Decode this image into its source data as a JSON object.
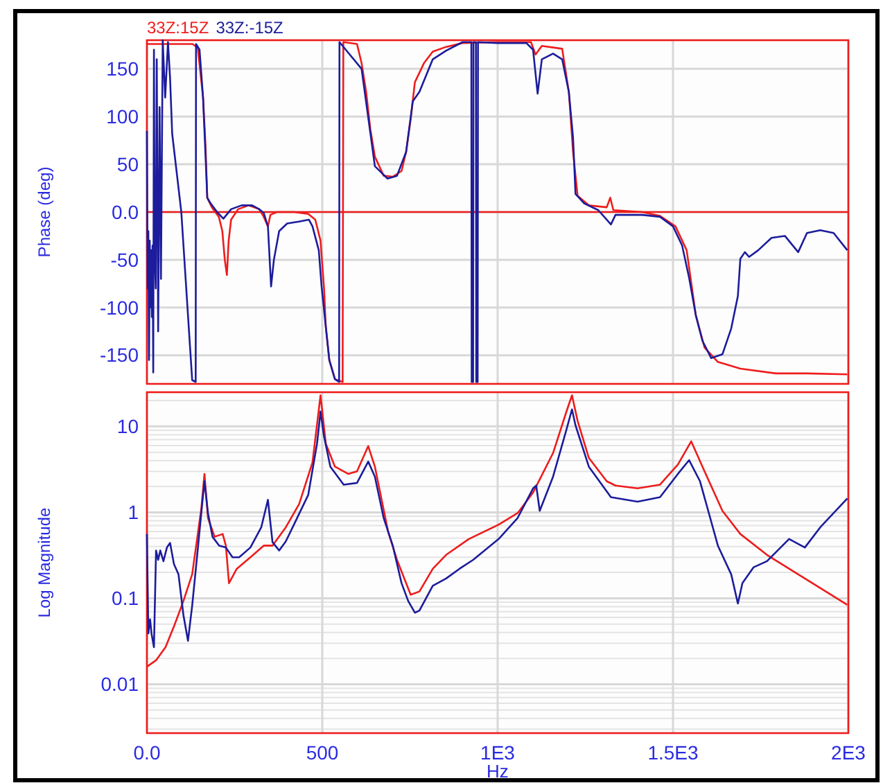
{
  "chart_data": [
    {
      "type": "line",
      "ylabel": "Phase (deg)",
      "xlim": [
        0,
        2000
      ],
      "xticks": [
        0,
        500,
        1000,
        1500,
        2000
      ],
      "ylim": [
        -180,
        180
      ],
      "yticks": [
        -150,
        -100,
        -50,
        {
          "value": 0,
          "label": "0.0"
        },
        50,
        100,
        150
      ],
      "grid": true,
      "legend": "top left",
      "tick_labels": "y",
      "ref_lines": [
        {
          "axis": "y",
          "value": 0,
          "color": "#ee1c1c"
        }
      ],
      "series": [
        {
          "name": "33Z:15Z",
          "color": "#ee1c1c",
          "x": [
            0,
            130,
            145,
            160,
            167,
            172,
            185,
            205,
            215,
            222,
            228,
            233,
            240,
            260,
            290,
            320,
            333,
            345,
            352,
            370,
            420,
            460,
            480,
            495,
            505,
            510,
            520,
            536,
            558,
            560,
            599,
            612,
            625,
            637,
            650,
            675,
            701,
            726,
            739,
            752,
            764,
            790,
            815,
            853,
            900,
            1000,
            1095,
            1108,
            1126,
            1184,
            1203,
            1215,
            1228,
            1260,
            1311,
            1321,
            1330,
            1412,
            1463,
            1507,
            1539,
            1565,
            1590,
            1628,
            1692,
            1793,
            1882,
            1997
          ],
          "values": [
            176,
            176,
            172,
            120,
            70,
            15,
            5,
            -5,
            -20,
            -50,
            -66,
            -30,
            -8,
            3,
            7,
            3,
            -5,
            -15,
            -3,
            0,
            0,
            -2,
            -8,
            -30,
            -80,
            -120,
            -155,
            -175,
            -178,
            178,
            176,
            156,
            126,
            87,
            58,
            38,
            37,
            43,
            63,
            97,
            136,
            156,
            168,
            173,
            177,
            178,
            178,
            165,
            174,
            171,
            126,
            63,
            17,
            7,
            5,
            15,
            2,
            0,
            -4,
            -15,
            -40,
            -108,
            -142,
            -157,
            -164,
            -169,
            -169,
            -170
          ]
        },
        {
          "name": "33Z:-15Z",
          "color": "#1c1c9c",
          "x": [
            0,
            2,
            4,
            6,
            8,
            10,
            12,
            14,
            16,
            18,
            20,
            22,
            25,
            28,
            32,
            36,
            40,
            45,
            52,
            60,
            66,
            72,
            98,
            129,
            139,
            140,
            150,
            160,
            167,
            172,
            180,
            200,
            218,
            240,
            270,
            300,
            320,
            333,
            345,
            354,
            362,
            377,
            400,
            434,
            462,
            472,
            490,
            498,
            510,
            520,
            536,
            548,
            549,
            612,
            650,
            686,
            713,
            739,
            758,
            777,
            815,
            853,
            900,
            925,
            926,
            930,
            931,
            938,
            939,
            943,
            944,
            1000,
            1082,
            1101,
            1114,
            1126,
            1158,
            1184,
            1203,
            1215,
            1222,
            1247,
            1287,
            1323,
            1336,
            1412,
            1463,
            1500,
            1526,
            1546,
            1565,
            1584,
            1609,
            1641,
            1666,
            1685,
            1692,
            1705,
            1717,
            1743,
            1781,
            1819,
            1857,
            1882,
            1920,
            1958,
            1997
          ],
          "values": [
            85,
            -80,
            -20,
            -155,
            -30,
            -100,
            -40,
            -110,
            -35,
            -168,
            170,
            -40,
            -80,
            160,
            -125,
            110,
            -70,
            180,
            120,
            178,
            140,
            82,
            0,
            -176,
            -178,
            176,
            170,
            120,
            60,
            15,
            10,
            0,
            -7,
            3,
            7,
            7,
            3,
            -1,
            -15,
            -78,
            -50,
            -20,
            -12,
            -10,
            -8,
            -15,
            -40,
            -78,
            -120,
            -155,
            -175,
            -178,
            178,
            150,
            48,
            35,
            38,
            63,
            116,
            126,
            160,
            169,
            178,
            178,
            -178,
            -178,
            178,
            178,
            -178,
            -178,
            178,
            177,
            177,
            170,
            124,
            160,
            166,
            160,
            126,
            78,
            19,
            9,
            2,
            -13,
            -3,
            -3,
            -5,
            -15,
            -35,
            -69,
            -108,
            -135,
            -153,
            -149,
            -122,
            -88,
            -49,
            -42,
            -47,
            -40,
            -27,
            -25,
            -42,
            -22,
            -19,
            -22,
            -40
          ]
        }
      ]
    },
    {
      "type": "line",
      "ylabel": "Log Magnitude",
      "xlabel": "Hz",
      "log": true,
      "xlim": [
        0,
        2000
      ],
      "xticks": [
        {
          "value": 0,
          "label": "0.0"
        },
        500,
        {
          "value": 1000,
          "label": "1E3"
        },
        {
          "value": 1500,
          "label": "1.5E3"
        },
        {
          "value": 2000,
          "label": "2E3"
        }
      ],
      "ylim": [
        0.0027,
        25
      ],
      "yticks": [
        0.01,
        0.1,
        1,
        10
      ],
      "grid": true,
      "series": [
        {
          "color": "#ee1c1c",
          "x": [
            0,
            26,
            53,
            77,
            104,
            129,
            155,
            164,
            174,
            193,
            216,
            225,
            234,
            256,
            295,
            333,
            358,
            396,
            434,
            472,
            495,
            510,
            536,
            574,
            599,
            631,
            650,
            688,
            713,
            752,
            777,
            815,
            853,
            918,
            1003,
            1057,
            1101,
            1158,
            1196,
            1212,
            1228,
            1260,
            1311,
            1336,
            1399,
            1463,
            1514,
            1552,
            1590,
            1641,
            1692,
            1768,
            1857,
            1997
          ],
          "values": [
            0.016,
            0.019,
            0.027,
            0.047,
            0.093,
            0.19,
            1.1,
            2.8,
            0.86,
            0.52,
            0.56,
            0.41,
            0.15,
            0.22,
            0.3,
            0.41,
            0.41,
            0.67,
            1.25,
            3.8,
            23,
            6.3,
            3.4,
            2.8,
            3.0,
            5.9,
            3.4,
            0.59,
            0.28,
            0.11,
            0.12,
            0.22,
            0.32,
            0.49,
            0.72,
            0.98,
            1.7,
            4.9,
            14.8,
            23,
            11.6,
            4.3,
            2.3,
            2.05,
            1.9,
            2.1,
            3.6,
            6.7,
            3.0,
            1.04,
            0.56,
            0.32,
            0.19,
            0.084
          ]
        },
        {
          "color": "#1c1c9c",
          "x": [
            0,
            4,
            9,
            13,
            20,
            26,
            32,
            38,
            47,
            57,
            66,
            77,
            90,
            104,
            117,
            129,
            142,
            155,
            164,
            167,
            174,
            187,
            206,
            225,
            244,
            263,
            295,
            326,
            345,
            358,
            377,
            396,
            422,
            460,
            485,
            495,
            504,
            523,
            561,
            599,
            631,
            650,
            675,
            701,
            726,
            745,
            764,
            777,
            815,
            853,
            891,
            930,
            1003,
            1057,
            1101,
            1110,
            1120,
            1158,
            1196,
            1212,
            1222,
            1260,
            1323,
            1399,
            1463,
            1514,
            1546,
            1577,
            1628,
            1666,
            1685,
            1698,
            1730,
            1768,
            1831,
            1876,
            1920,
            1997
          ],
          "values": [
            0.56,
            0.039,
            0.057,
            0.039,
            0.027,
            0.36,
            0.28,
            0.36,
            0.27,
            0.39,
            0.44,
            0.25,
            0.19,
            0.064,
            0.032,
            0.082,
            0.28,
            0.98,
            2.3,
            1.8,
            0.98,
            0.52,
            0.41,
            0.39,
            0.3,
            0.3,
            0.39,
            0.67,
            1.4,
            0.45,
            0.36,
            0.46,
            0.76,
            1.6,
            6.3,
            14.9,
            8.0,
            3.4,
            2.1,
            2.2,
            3.9,
            2.6,
            0.86,
            0.41,
            0.15,
            0.093,
            0.068,
            0.072,
            0.14,
            0.17,
            0.22,
            0.28,
            0.49,
            0.86,
            1.9,
            2.05,
            1.04,
            2.6,
            9.1,
            15.8,
            10.3,
            3.4,
            1.5,
            1.33,
            1.5,
            2.8,
            4.05,
            2.3,
            0.41,
            0.19,
            0.087,
            0.15,
            0.23,
            0.27,
            0.49,
            0.39,
            0.67,
            1.45
          ]
        }
      ]
    }
  ]
}
